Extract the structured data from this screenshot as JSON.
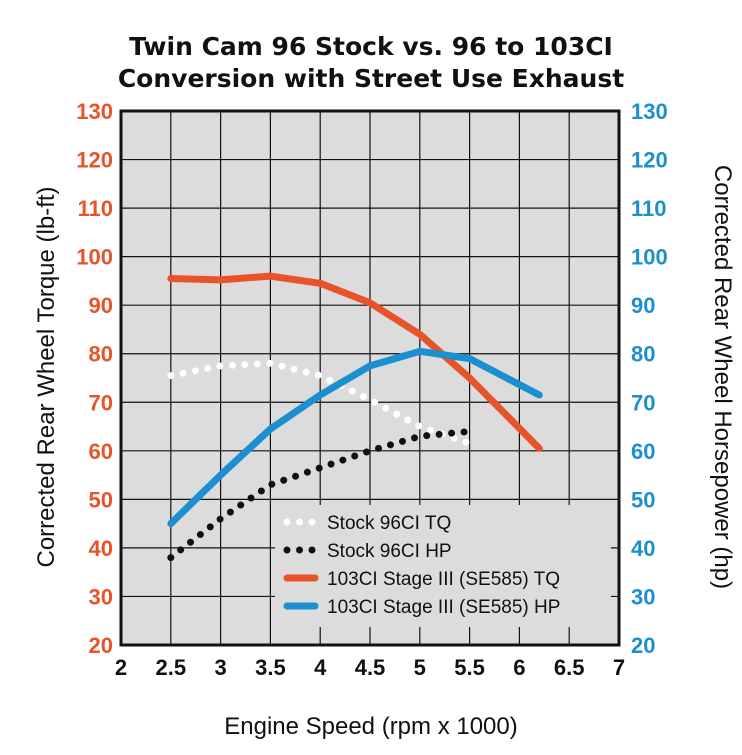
{
  "chart_data": {
    "type": "line",
    "title_lines": [
      "Twin Cam 96 Stock vs. 96 to 103CI",
      "Conversion with Street Use Exhaust"
    ],
    "xlabel": "Engine Speed (rpm x 1000)",
    "ylabel": "Corrected Rear Wheel Torque (lb-ft)",
    "ylabel_right": "Corrected Rear Wheel Horsepower (hp)",
    "xlim": [
      2,
      7
    ],
    "ylim": [
      20,
      130
    ],
    "ylim_right": [
      20,
      130
    ],
    "x_ticks": [
      "2",
      "2.5",
      "3",
      "3.5",
      "4",
      "4.5",
      "5",
      "5.5",
      "6",
      "6.5",
      "7"
    ],
    "y_ticks": [
      "20",
      "30",
      "40",
      "50",
      "60",
      "70",
      "80",
      "90",
      "100",
      "110",
      "120",
      "130"
    ],
    "y_ticks_right": [
      "20",
      "30",
      "40",
      "50",
      "60",
      "70",
      "80",
      "90",
      "100",
      "110",
      "120",
      "130"
    ],
    "grid": true,
    "legend_position": "bottom-right",
    "colors": {
      "torque_axis": "#e8542a",
      "hp_axis": "#1b8fd0",
      "plot_background": "#dcdcdc",
      "grid": "#111111"
    },
    "series": [
      {
        "name": "Stock 96CI TQ",
        "color": "#ffffff",
        "style": "dotted",
        "axis": "left",
        "x": [
          2.5,
          3.0,
          3.5,
          4.0,
          4.5,
          5.0,
          5.5
        ],
        "y": [
          75.5,
          77.5,
          78,
          75.5,
          70.5,
          65,
          61.5
        ]
      },
      {
        "name": "Stock 96CI HP",
        "color": "#111111",
        "style": "dotted",
        "axis": "right",
        "x": [
          2.5,
          3.0,
          3.5,
          4.0,
          4.5,
          5.0,
          5.5
        ],
        "y": [
          38,
          46,
          53,
          56.5,
          60,
          63,
          64
        ]
      },
      {
        "name": "103CI Stage III (SE585) TQ",
        "color": "#e8542a",
        "style": "solid",
        "axis": "left",
        "x": [
          2.5,
          3.0,
          3.5,
          4.0,
          4.5,
          5.0,
          5.5,
          6.2
        ],
        "y": [
          95.5,
          95.2,
          96,
          94.5,
          90.5,
          84,
          75,
          60.5
        ]
      },
      {
        "name": "103CI Stage III (SE585) HP",
        "color": "#1b8fd0",
        "style": "solid",
        "axis": "right",
        "x": [
          2.5,
          3.0,
          3.5,
          4.0,
          4.5,
          5.0,
          5.5,
          6.2
        ],
        "y": [
          45,
          55,
          64.5,
          71.5,
          77.5,
          80.5,
          79,
          71.5
        ]
      }
    ]
  }
}
